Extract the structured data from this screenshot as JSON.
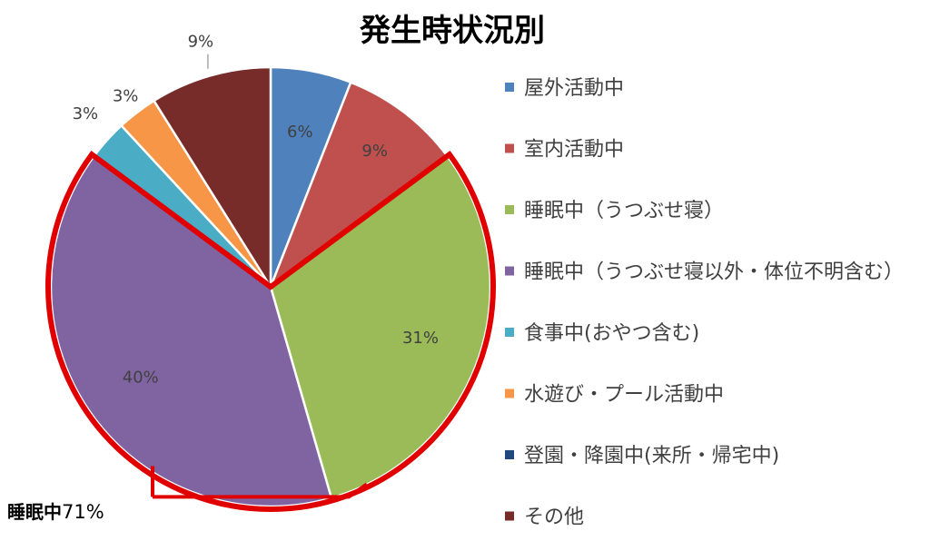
{
  "chart_data": {
    "type": "pie",
    "title": "発生時状況別",
    "start_angle_deg": 0,
    "direction": "clockwise",
    "slices": [
      {
        "name": "屋外活動中",
        "value": 6,
        "label": "6%",
        "color": "#4F81BD"
      },
      {
        "name": "室内活動中",
        "value": 9,
        "label": "9%",
        "color": "#C0504D"
      },
      {
        "name": "睡眠中（うつぶせ寝）",
        "value": 31,
        "label": "31%",
        "color": "#9BBB59"
      },
      {
        "name": "睡眠中（うつぶせ寝以外・体位不明含む）",
        "value": 40,
        "label": "40%",
        "color": "#8064A2"
      },
      {
        "name": "食事中(おやつ含む)",
        "value": 3,
        "label": "3%",
        "color": "#4BACC6"
      },
      {
        "name": "水遊び・プール活動中",
        "value": 3,
        "label": "3%",
        "color": "#F79646"
      },
      {
        "name": "登園・降園中(来所・帰宅中)",
        "value": 0,
        "label": "",
        "color": "#1F497D"
      },
      {
        "name": "その他",
        "value": 9,
        "label": "9%",
        "color": "#772C2A"
      }
    ],
    "legend_position": "right",
    "highlight": {
      "slices": [
        "睡眠中（うつぶせ寝）",
        "睡眠中（うつぶせ寝以外・体位不明含む）"
      ],
      "color": "#E00000",
      "label_main": "睡眠中",
      "label_value": "71%"
    }
  }
}
